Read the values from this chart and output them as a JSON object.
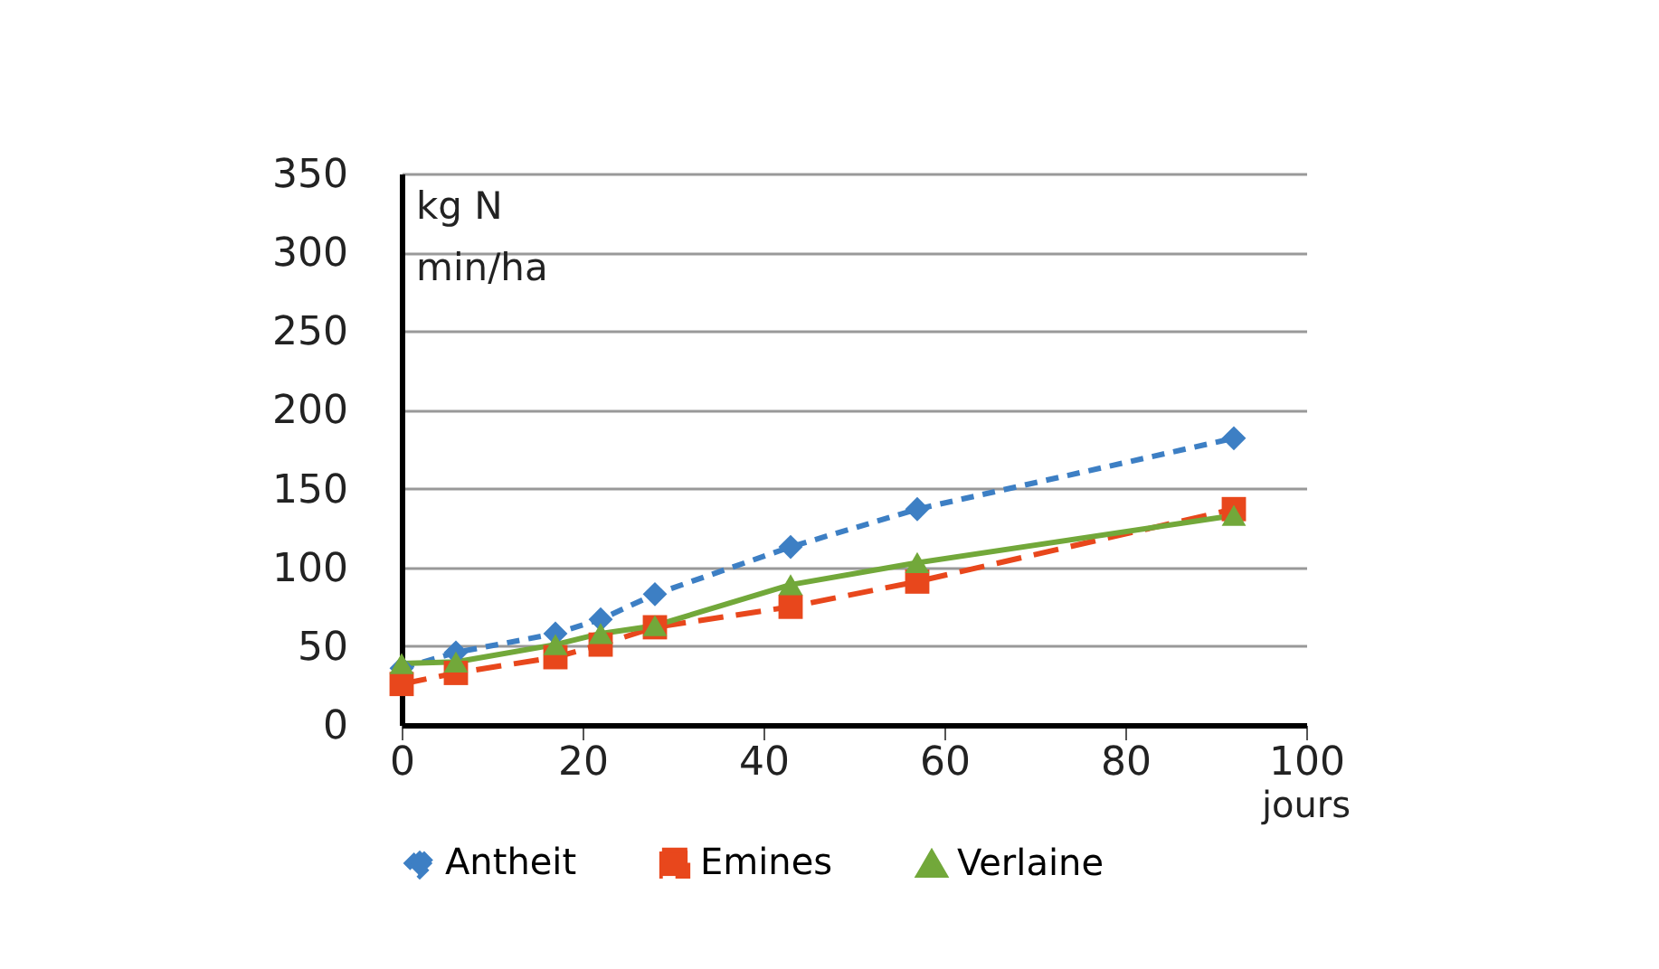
{
  "chart_data": {
    "type": "line",
    "ylabel": "kg N\nmin/ha",
    "xlabel": "jours",
    "xlim": [
      0,
      100
    ],
    "xticks": [
      0,
      20,
      40,
      60,
      80,
      100
    ],
    "ylim": [
      0,
      350
    ],
    "yticks": [
      0,
      50,
      100,
      150,
      200,
      250,
      300,
      350
    ],
    "grid": "y",
    "legend": "bottom",
    "x": [
      0,
      6,
      17,
      22,
      28,
      43,
      57,
      92
    ],
    "series": [
      {
        "name": "Antheit",
        "color": "#3d7fc4",
        "marker": "diamond",
        "line_style": "dotted",
        "values": [
          36,
          46,
          58,
          67,
          83,
          113,
          137,
          182
        ]
      },
      {
        "name": "Emines",
        "color": "#e8471c",
        "marker": "square",
        "line_style": "dashed",
        "values": [
          26,
          33,
          43,
          51,
          62,
          75,
          91,
          137
        ]
      },
      {
        "name": "Verlaine",
        "color": "#72a83a",
        "marker": "triangle",
        "line_style": "solid",
        "values": [
          39,
          40,
          51,
          58,
          63,
          89,
          103,
          133
        ]
      }
    ]
  }
}
